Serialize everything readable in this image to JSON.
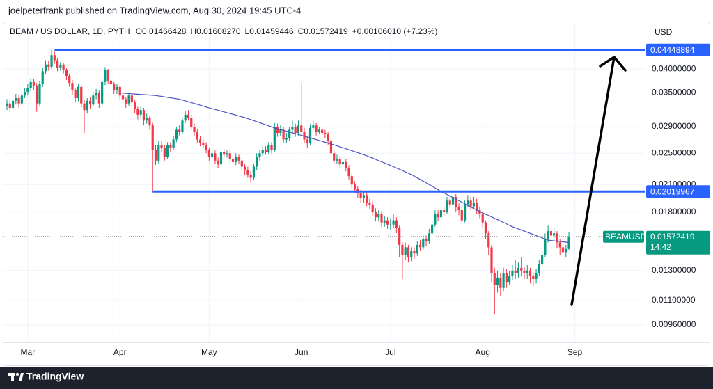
{
  "attribution": "joelpeterfrank published on TradingView.com, Aug 30, 2024 19:45 UTC-4",
  "brand": "TradingView",
  "chart_data": {
    "type": "candlestick",
    "legend": {
      "symbol": "BEAM / US DOLLAR, 1D, PYTH",
      "open": "O0.01466428",
      "high": "H0.01608270",
      "low": "L0.01459446",
      "close": "C0.01572419",
      "change": "+0.00106010 (+7.23%)"
    },
    "currency": "USD",
    "log_scale": true,
    "grid": true,
    "up_color": "#089981",
    "down_color": "#f23645",
    "ylim": [
      0.00871,
      0.0517
    ],
    "yticks": [
      {
        "value": 0.04,
        "label": "0.04000000"
      },
      {
        "value": 0.035,
        "label": "0.03500000"
      },
      {
        "value": 0.029,
        "label": "0.02900000"
      },
      {
        "value": 0.025,
        "label": "0.02500000"
      },
      {
        "value": 0.021,
        "label": "0.02100000"
      },
      {
        "value": 0.018,
        "label": "0.01800000"
      },
      {
        "value": 0.013,
        "label": "0.01300000"
      },
      {
        "value": 0.011,
        "label": "0.01100000"
      },
      {
        "value": 0.0096,
        "label": "0.00960000"
      }
    ],
    "categories": [
      null,
      null,
      null,
      null,
      null,
      null,
      null,
      "Mar",
      null,
      null,
      null,
      null,
      null,
      null,
      null,
      null,
      null,
      null,
      null,
      null,
      null,
      null,
      null,
      null,
      null,
      null,
      null,
      null,
      null,
      null,
      null,
      null,
      null,
      null,
      null,
      null,
      null,
      null,
      "Apr",
      null,
      null,
      null,
      null,
      null,
      null,
      null,
      null,
      null,
      null,
      null,
      null,
      null,
      null,
      null,
      null,
      null,
      null,
      null,
      null,
      null,
      null,
      null,
      null,
      null,
      null,
      null,
      null,
      null,
      "May",
      null,
      null,
      null,
      null,
      null,
      null,
      null,
      null,
      null,
      null,
      null,
      null,
      null,
      null,
      null,
      null,
      null,
      null,
      null,
      null,
      null,
      null,
      null,
      null,
      null,
      null,
      null,
      null,
      null,
      null,
      "Jun",
      null,
      null,
      null,
      null,
      null,
      null,
      null,
      null,
      null,
      null,
      null,
      null,
      null,
      null,
      null,
      null,
      null,
      null,
      null,
      null,
      null,
      null,
      null,
      null,
      null,
      null,
      null,
      null,
      null,
      "Jul",
      null,
      null,
      null,
      null,
      null,
      null,
      null,
      null,
      null,
      null,
      null,
      null,
      null,
      null,
      null,
      null,
      null,
      null,
      null,
      null,
      null,
      null,
      null,
      null,
      null,
      null,
      null,
      null,
      null,
      null,
      "Aug",
      null,
      null,
      null,
      null,
      null,
      null,
      null,
      null,
      null,
      null,
      null,
      null,
      null,
      null,
      null,
      null,
      null,
      null,
      null,
      null,
      null,
      null,
      null,
      null,
      null,
      null,
      null,
      null,
      null,
      null,
      "Sep"
    ],
    "open": [
      0.0325,
      0.033,
      0.0322,
      0.0335,
      0.034,
      0.033,
      0.0345,
      0.0352,
      0.036,
      0.0372,
      0.0365,
      0.033,
      0.0368,
      0.0395,
      0.041,
      0.0405,
      0.0432,
      0.042,
      0.0402,
      0.041,
      0.0398,
      0.0385,
      0.037,
      0.0355,
      0.034,
      0.0362,
      0.033,
      0.0318,
      0.0335,
      0.0328,
      0.0345,
      0.035,
      0.033,
      0.0372,
      0.0398,
      0.0375,
      0.0368,
      0.0355,
      0.0362,
      0.0345,
      0.0338,
      0.033,
      0.0345,
      0.0332,
      0.032,
      0.031,
      0.0318,
      0.03,
      0.0305,
      0.0292,
      0.0255,
      0.024,
      0.0262,
      0.0258,
      0.0245,
      0.0262,
      0.0258,
      0.027,
      0.0285,
      0.0282,
      0.03,
      0.031,
      0.0305,
      0.029,
      0.0282,
      0.027,
      0.0265,
      0.0262,
      0.0255,
      0.0245,
      0.025,
      0.024,
      0.0235,
      0.0252,
      0.0248,
      0.025,
      0.0242,
      0.0238,
      0.0245,
      0.024,
      0.0232,
      0.0228,
      0.0222,
      0.0218,
      0.0232,
      0.0245,
      0.025,
      0.0255,
      0.0252,
      0.0262,
      0.0255,
      0.029,
      0.028,
      0.0285,
      0.027,
      0.0272,
      0.0285,
      0.029,
      0.028,
      0.0292,
      0.0282,
      0.027,
      0.0265,
      0.0288,
      0.0292,
      0.0282,
      0.0285,
      0.028,
      0.0278,
      0.0268,
      0.025,
      0.024,
      0.0242,
      0.0235,
      0.0238,
      0.023,
      0.022,
      0.021,
      0.0205,
      0.02,
      0.0195,
      0.0198,
      0.019,
      0.0188,
      0.018,
      0.0175,
      0.0178,
      0.017,
      0.0172,
      0.0168,
      0.0168,
      0.0172,
      0.0165,
      0.015,
      0.0142,
      0.0148,
      0.014,
      0.0145,
      0.0143,
      0.015,
      0.0148,
      0.0155,
      0.0153,
      0.016,
      0.0168,
      0.0178,
      0.0175,
      0.0182,
      0.018,
      0.0192,
      0.0188,
      0.0196,
      0.0185,
      0.0182,
      0.0172,
      0.0188,
      0.0192,
      0.0186,
      0.019,
      0.0182,
      0.0178,
      0.017,
      0.016,
      0.0148,
      0.0128,
      0.012,
      0.0125,
      0.0118,
      0.0128,
      0.0122,
      0.0126,
      0.013,
      0.0128,
      0.0132,
      0.013,
      0.0128,
      0.013,
      0.0126,
      0.0124,
      0.0128,
      0.0135,
      0.0142,
      0.0155,
      0.0162,
      0.0158,
      0.016,
      0.0152,
      0.0148,
      0.0144,
      0.01466428,
      null,
      null
    ],
    "high": [
      0.0338,
      0.0336,
      0.0342,
      0.0348,
      0.0346,
      0.0352,
      0.036,
      0.0368,
      0.038,
      0.0378,
      0.037,
      0.0375,
      0.0402,
      0.042,
      0.0418,
      0.04449,
      0.044,
      0.0425,
      0.0416,
      0.0414,
      0.0402,
      0.039,
      0.0376,
      0.036,
      0.0368,
      0.0366,
      0.0336,
      0.034,
      0.0342,
      0.0352,
      0.0358,
      0.0355,
      0.038,
      0.0404,
      0.04,
      0.038,
      0.0372,
      0.0368,
      0.0366,
      0.035,
      0.0342,
      0.035,
      0.0348,
      0.0336,
      0.0324,
      0.0324,
      0.0322,
      0.0312,
      0.0308,
      0.0296,
      0.0262,
      0.0268,
      0.0268,
      0.0262,
      0.0266,
      0.0266,
      0.0275,
      0.029,
      0.0292,
      0.0305,
      0.0316,
      0.0318,
      0.031,
      0.0295,
      0.0286,
      0.0275,
      0.027,
      0.0266,
      0.0258,
      0.0255,
      0.0254,
      0.0244,
      0.0256,
      0.0256,
      0.0254,
      0.0254,
      0.0246,
      0.025,
      0.0248,
      0.0244,
      0.0236,
      0.0232,
      0.0226,
      0.0236,
      0.025,
      0.0254,
      0.026,
      0.026,
      0.0266,
      0.0266,
      0.0296,
      0.0295,
      0.0292,
      0.029,
      0.028,
      0.029,
      0.03,
      0.0295,
      0.03,
      0.037,
      0.0288,
      0.0275,
      0.0294,
      0.03,
      0.0296,
      0.029,
      0.029,
      0.0285,
      0.0282,
      0.0272,
      0.0254,
      0.0248,
      0.0246,
      0.0244,
      0.0242,
      0.0234,
      0.0224,
      0.0214,
      0.0208,
      0.0204,
      0.0202,
      0.0201,
      0.0194,
      0.0192,
      0.0184,
      0.0182,
      0.0181,
      0.0176,
      0.0175,
      0.0174,
      0.0178,
      0.0175,
      0.0167,
      0.0152,
      0.0152,
      0.015,
      0.0148,
      0.0148,
      0.0153,
      0.0154,
      0.0158,
      0.0158,
      0.0164,
      0.0172,
      0.0182,
      0.0182,
      0.0186,
      0.0186,
      0.0196,
      0.0196,
      0.0204,
      0.0199,
      0.0189,
      0.0185,
      0.0192,
      0.0198,
      0.0196,
      0.0196,
      0.0194,
      0.0186,
      0.0181,
      0.0172,
      0.0162,
      0.015,
      0.0132,
      0.013,
      0.0128,
      0.0132,
      0.0131,
      0.013,
      0.0134,
      0.0138,
      0.0136,
      0.014,
      0.0133,
      0.0134,
      0.0132,
      0.0128,
      0.0131,
      0.0138,
      0.0146,
      0.016,
      0.0167,
      0.0166,
      0.0165,
      0.0162,
      0.0155,
      0.015,
      0.015,
      0.0160827,
      null,
      null
    ],
    "low": [
      0.0318,
      0.0314,
      0.0318,
      0.0328,
      0.0322,
      0.0326,
      0.034,
      0.0345,
      0.0354,
      0.0356,
      0.0315,
      0.0325,
      0.0362,
      0.0388,
      0.0396,
      0.04,
      0.0412,
      0.0395,
      0.0396,
      0.039,
      0.0376,
      0.0362,
      0.0346,
      0.0332,
      0.0334,
      0.0322,
      0.028,
      0.0312,
      0.032,
      0.0324,
      0.0338,
      0.0322,
      0.0326,
      0.0366,
      0.0368,
      0.036,
      0.0348,
      0.0348,
      0.0338,
      0.033,
      0.0322,
      0.0325,
      0.0325,
      0.0313,
      0.0302,
      0.0304,
      0.0292,
      0.0295,
      0.0285,
      0.0202,
      0.0234,
      0.0236,
      0.0252,
      0.024,
      0.0242,
      0.0252,
      0.0254,
      0.0266,
      0.0276,
      0.0278,
      0.0296,
      0.03,
      0.0285,
      0.0276,
      0.0265,
      0.026,
      0.0257,
      0.025,
      0.024,
      0.024,
      0.0235,
      0.023,
      0.0232,
      0.0244,
      0.0244,
      0.0238,
      0.0234,
      0.0234,
      0.0236,
      0.0228,
      0.0222,
      0.0218,
      0.0212,
      0.0215,
      0.0228,
      0.024,
      0.0246,
      0.0248,
      0.0248,
      0.025,
      0.0252,
      0.0274,
      0.0275,
      0.0265,
      0.0265,
      0.0268,
      0.028,
      0.0274,
      0.0276,
      0.0276,
      0.0264,
      0.0258,
      0.0262,
      0.0284,
      0.0276,
      0.0278,
      0.0275,
      0.0272,
      0.0262,
      0.0245,
      0.0235,
      0.0236,
      0.023,
      0.023,
      0.0226,
      0.0216,
      0.0205,
      0.02,
      0.0195,
      0.019,
      0.019,
      0.0186,
      0.0183,
      0.0176,
      0.0171,
      0.0171,
      0.0166,
      0.0166,
      0.0164,
      0.0163,
      0.0165,
      0.016,
      0.014,
      0.0124,
      0.0138,
      0.0136,
      0.0137,
      0.0139,
      0.0141,
      0.0145,
      0.0146,
      0.0149,
      0.0151,
      0.0158,
      0.0166,
      0.0171,
      0.0173,
      0.0176,
      0.0178,
      0.0184,
      0.0186,
      0.018,
      0.0177,
      0.0168,
      0.017,
      0.0185,
      0.0182,
      0.0183,
      0.0178,
      0.0174,
      0.0165,
      0.0155,
      0.0142,
      0.0122,
      0.0102,
      0.0115,
      0.0113,
      0.0116,
      0.0118,
      0.012,
      0.0123,
      0.0124,
      0.0125,
      0.0126,
      0.0124,
      0.0124,
      0.0121,
      0.0119,
      0.0121,
      0.0126,
      0.0133,
      0.014,
      0.0152,
      0.0154,
      0.0154,
      0.0147,
      0.0142,
      0.0139,
      0.014,
      0.01459446,
      null,
      null
    ],
    "close": [
      0.033,
      0.0322,
      0.0335,
      0.034,
      0.033,
      0.0345,
      0.0352,
      0.036,
      0.0372,
      0.0365,
      0.033,
      0.0368,
      0.0395,
      0.041,
      0.0405,
      0.0432,
      0.042,
      0.0402,
      0.041,
      0.0398,
      0.0385,
      0.037,
      0.0355,
      0.034,
      0.0362,
      0.033,
      0.0318,
      0.0335,
      0.0328,
      0.0345,
      0.035,
      0.033,
      0.0372,
      0.0398,
      0.0375,
      0.0368,
      0.0355,
      0.0362,
      0.0345,
      0.0338,
      0.033,
      0.0345,
      0.0332,
      0.032,
      0.031,
      0.0318,
      0.03,
      0.0305,
      0.0292,
      0.0255,
      0.024,
      0.0262,
      0.0258,
      0.0245,
      0.0262,
      0.0258,
      0.027,
      0.0285,
      0.0282,
      0.03,
      0.031,
      0.0305,
      0.029,
      0.0282,
      0.027,
      0.0265,
      0.0262,
      0.0255,
      0.0245,
      0.025,
      0.024,
      0.0235,
      0.0252,
      0.0248,
      0.025,
      0.0242,
      0.0238,
      0.0245,
      0.024,
      0.0232,
      0.0228,
      0.0222,
      0.0218,
      0.0232,
      0.0245,
      0.025,
      0.0255,
      0.0252,
      0.0262,
      0.0255,
      0.029,
      0.028,
      0.0285,
      0.027,
      0.0272,
      0.0285,
      0.029,
      0.028,
      0.0292,
      0.0282,
      0.027,
      0.0265,
      0.0288,
      0.0292,
      0.0282,
      0.0285,
      0.028,
      0.0278,
      0.0268,
      0.025,
      0.024,
      0.0242,
      0.0235,
      0.0238,
      0.023,
      0.022,
      0.021,
      0.0205,
      0.02,
      0.0195,
      0.0198,
      0.019,
      0.0188,
      0.018,
      0.0175,
      0.0178,
      0.017,
      0.0172,
      0.0168,
      0.0168,
      0.0172,
      0.0165,
      0.015,
      0.0142,
      0.0148,
      0.014,
      0.0145,
      0.0143,
      0.015,
      0.0148,
      0.0155,
      0.0153,
      0.016,
      0.0168,
      0.0178,
      0.0175,
      0.0182,
      0.018,
      0.0192,
      0.0188,
      0.0196,
      0.0185,
      0.0182,
      0.0172,
      0.0188,
      0.0192,
      0.0186,
      0.019,
      0.0182,
      0.0178,
      0.017,
      0.016,
      0.0148,
      0.0128,
      0.012,
      0.0125,
      0.0118,
      0.0128,
      0.0122,
      0.0126,
      0.013,
      0.0128,
      0.0132,
      0.013,
      0.0128,
      0.013,
      0.0126,
      0.0124,
      0.0128,
      0.0135,
      0.0142,
      0.0155,
      0.0162,
      0.0158,
      0.016,
      0.0152,
      0.0148,
      0.0144,
      0.01466,
      0.01572419,
      null,
      null
    ],
    "ma": {
      "color": "#4f52c4",
      "values": [
        null,
        null,
        null,
        null,
        null,
        null,
        null,
        null,
        null,
        null,
        null,
        null,
        null,
        null,
        null,
        null,
        null,
        null,
        null,
        null,
        null,
        null,
        null,
        null,
        null,
        null,
        null,
        null,
        null,
        null,
        null,
        null,
        null,
        null,
        null,
        null,
        null,
        null,
        0.035,
        0.03496,
        0.03492,
        0.03488,
        0.03483,
        0.03479,
        0.03475,
        0.03471,
        0.03467,
        0.03463,
        0.03458,
        0.03454,
        0.0345,
        0.03441,
        0.03433,
        0.03424,
        0.03415,
        0.03406,
        0.03398,
        0.03389,
        0.0338,
        0.03364,
        0.03348,
        0.03332,
        0.03316,
        0.033,
        0.03284,
        0.03268,
        0.03252,
        0.03236,
        0.0322,
        0.03206,
        0.03192,
        0.03178,
        0.03163,
        0.03149,
        0.03135,
        0.03121,
        0.03107,
        0.03093,
        0.03078,
        0.03064,
        0.0305,
        0.03033,
        0.03016,
        0.02999,
        0.02982,
        0.02965,
        0.02948,
        0.02931,
        0.02914,
        0.02897,
        0.0288,
        0.02867,
        0.02854,
        0.02841,
        0.02828,
        0.02815,
        0.02802,
        0.02789,
        0.02776,
        0.02763,
        0.0275,
        0.02737,
        0.02724,
        0.02711,
        0.02698,
        0.02685,
        0.02672,
        0.02659,
        0.02646,
        0.02633,
        0.0262,
        0.02606,
        0.02592,
        0.02578,
        0.02564,
        0.0255,
        0.02536,
        0.02522,
        0.02508,
        0.02494,
        0.0248,
        0.02464,
        0.02448,
        0.02432,
        0.02416,
        0.024,
        0.02384,
        0.02368,
        0.02352,
        0.02336,
        0.0232,
        0.02303,
        0.02287,
        0.0227,
        0.02253,
        0.02237,
        0.0222,
        0.022,
        0.0218,
        0.0216,
        0.0214,
        0.0212,
        0.021,
        0.0208,
        0.0206,
        0.0204,
        0.0202,
        0.02003,
        0.01987,
        0.0197,
        0.01953,
        0.01937,
        0.0192,
        0.01903,
        0.01887,
        0.0187,
        0.01853,
        0.01837,
        0.0182,
        0.01807,
        0.01793,
        0.0178,
        0.01767,
        0.01753,
        0.0174,
        0.01727,
        0.01713,
        0.017,
        0.01687,
        0.01673,
        0.0166,
        0.0165,
        0.0164,
        0.0163,
        0.0162,
        0.0161,
        0.016,
        0.0159,
        0.0158,
        0.0157,
        0.0156,
        0.0155,
        0.0154,
        0.01537,
        0.01534,
        0.01531,
        0.01529,
        0.01526,
        0.01523,
        0.0152,
        null,
        null
      ]
    },
    "level_color": "#2962ff",
    "levels": [
      {
        "value": 0.04448894,
        "label": "0.04448894"
      },
      {
        "value": 0.02019967,
        "label": "0.02019967"
      }
    ],
    "last_label": {
      "symbol": "BEAMUSD",
      "price": "0.01572419",
      "countdown": "14:42"
    }
  }
}
